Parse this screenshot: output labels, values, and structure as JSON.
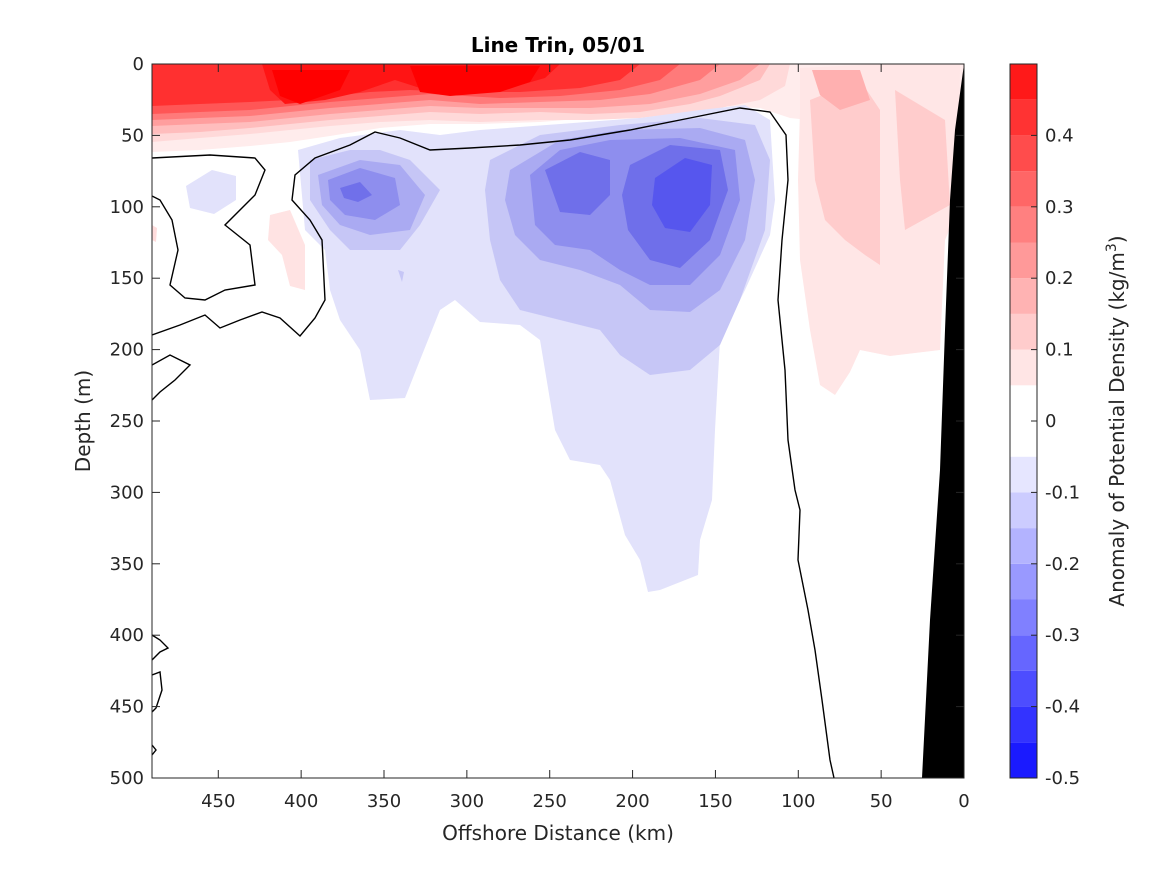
{
  "chart_data": {
    "type": "heatmap",
    "subtype": "filled-contour section",
    "title": "Line Trin, 05/01",
    "xlabel": "Offshore Distance (km)",
    "ylabel": "Depth (m)",
    "colorbar_label": "Anomaly of Potential Density (kg/m",
    "colorbar_label_superscript": "3",
    "colorbar_label_suffix": ")",
    "xlim": [
      490,
      0
    ],
    "x_reversed": true,
    "ylim": [
      0,
      500
    ],
    "y_reversed": true,
    "xticks": [
      "450",
      "400",
      "350",
      "300",
      "250",
      "200",
      "150",
      "100",
      "50",
      "0"
    ],
    "yticks": [
      "0",
      "50",
      "100",
      "150",
      "200",
      "250",
      "300",
      "350",
      "400",
      "450",
      "500"
    ],
    "clim": [
      -0.5,
      0.5
    ],
    "contour_interval": 0.05,
    "colorbar_ticks": [
      "0.4",
      "0.3",
      "0.2",
      "0.1",
      "0",
      "-0.1",
      "-0.2",
      "-0.3",
      "-0.4",
      "-0.5"
    ],
    "colormap": "blue-white-red",
    "colors": {
      "max": "#ff0000",
      "zero": "#ffffff",
      "min": "#0000ff",
      "bathymetry": "#000000",
      "zero_contour": "#000000"
    },
    "features": [
      {
        "name": "surface positive anomaly",
        "x_range": [
          490,
          120
        ],
        "depth_range": [
          0,
          60
        ],
        "peak_value": 0.45
      },
      {
        "name": "subsurface negative core A",
        "center": [
          360,
          90
        ],
        "peak_value": -0.2
      },
      {
        "name": "subsurface negative core B",
        "center": [
          230,
          85
        ],
        "peak_value": -0.25
      },
      {
        "name": "subsurface negative core C",
        "center": [
          170,
          90
        ],
        "peak_value": -0.3
      },
      {
        "name": "negative tongue",
        "x_range": [
          300,
          150
        ],
        "depth_range": [
          60,
          370
        ],
        "peak_value": -0.05
      },
      {
        "name": "nearshore positive anomaly",
        "x_range": [
          100,
          10
        ],
        "depth_range": [
          0,
          240
        ],
        "peak_value": 0.2
      },
      {
        "name": "shelf bathymetry",
        "x_range": [
          30,
          0
        ],
        "depth_range": [
          0,
          500
        ]
      }
    ]
  }
}
